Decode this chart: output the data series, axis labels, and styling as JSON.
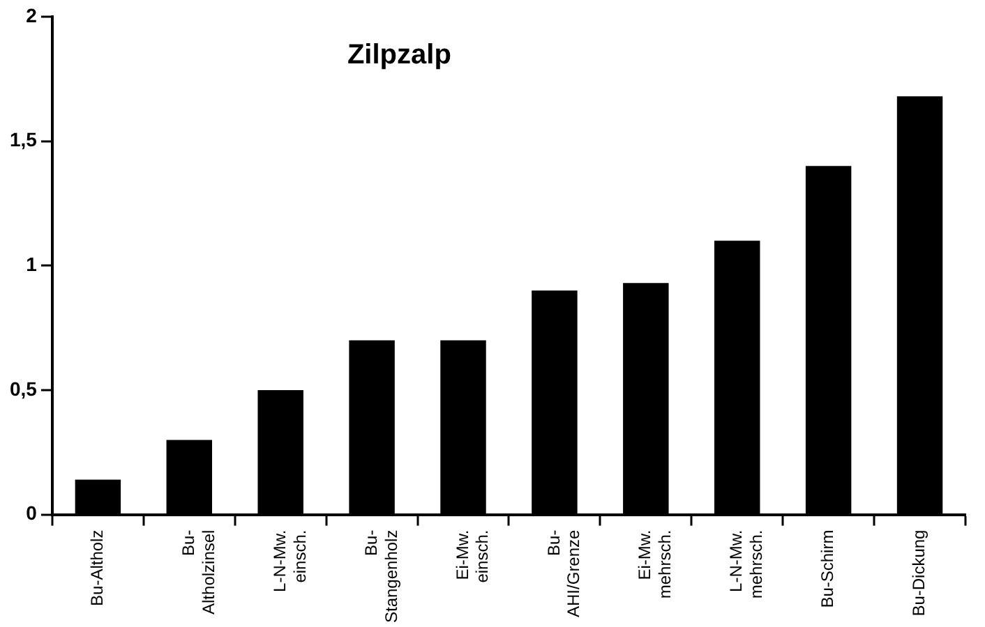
{
  "chart_data": {
    "type": "bar",
    "title": "Zilpzalp",
    "categories": [
      "Bu-Altholz",
      "Bu-Altholzinsel",
      "L-N-Mw. einsch.",
      "Bu-Stangenholz",
      "Ei-Mw. einsch.",
      "Bu-AHI/Grenze",
      "Ei-Mw. mehrsch.",
      "L-N-Mw. mehrsch.",
      "Bu-Schirm",
      "Bu-Dickung"
    ],
    "values": [
      0.14,
      0.3,
      0.5,
      0.7,
      0.7,
      0.9,
      0.93,
      1.1,
      1.4,
      1.68
    ],
    "color": "#000000",
    "ylim": [
      0,
      2
    ],
    "yticks": [
      0,
      {
        "value": 0.5,
        "label": "0,5"
      },
      1,
      {
        "value": 1.5,
        "label": "1,5"
      },
      2
    ],
    "grid": false,
    "legend": false
  }
}
